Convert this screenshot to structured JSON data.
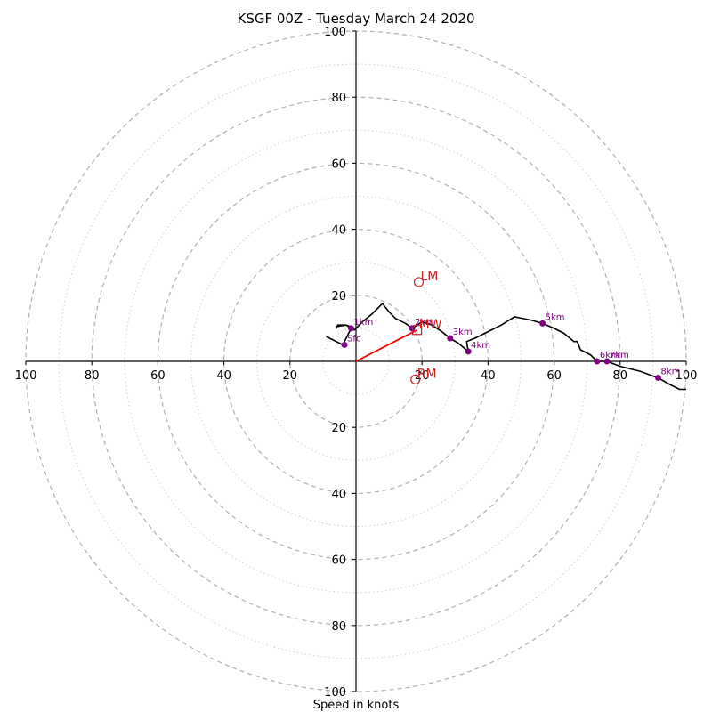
{
  "chart_data": {
    "type": "hodograph",
    "title": "KSGF 00Z - Tuesday March 24 2020",
    "xlabel": "Speed in knots",
    "units": "knots",
    "range": [
      -100,
      100
    ],
    "rings_major": [
      20,
      40,
      60,
      80,
      100
    ],
    "rings_minor": [
      10,
      30,
      50,
      70,
      90
    ],
    "axis_ticks": [
      {
        "v": -100,
        "label": "100"
      },
      {
        "v": -80,
        "label": "80"
      },
      {
        "v": -60,
        "label": "60"
      },
      {
        "v": -40,
        "label": "40"
      },
      {
        "v": -20,
        "label": "20"
      },
      {
        "v": 20,
        "label": "20"
      },
      {
        "v": 40,
        "label": "40"
      },
      {
        "v": 60,
        "label": "60"
      },
      {
        "v": 80,
        "label": "80"
      },
      {
        "v": 100,
        "label": "100"
      }
    ],
    "trace": [
      [
        -9,
        7.5
      ],
      [
        -8,
        7
      ],
      [
        -6,
        6
      ],
      [
        -4,
        5
      ],
      [
        -3,
        7
      ],
      [
        -2,
        9
      ],
      [
        -1,
        10
      ],
      [
        -1.5,
        10.5
      ],
      [
        -3,
        11
      ],
      [
        -5.5,
        11
      ],
      [
        -6,
        10
      ],
      [
        -6,
        10.5
      ],
      [
        -3,
        11
      ],
      [
        -1.5,
        10
      ],
      [
        -0.5,
        9.5
      ],
      [
        2,
        12
      ],
      [
        5,
        14.5
      ],
      [
        8,
        17.5
      ],
      [
        10,
        15
      ],
      [
        12,
        13
      ],
      [
        15,
        11.5
      ],
      [
        17,
        10
      ],
      [
        18.5,
        11
      ],
      [
        20,
        12
      ],
      [
        23,
        11
      ],
      [
        26,
        9
      ],
      [
        28.5,
        7
      ],
      [
        31,
        5.5
      ],
      [
        34,
        3
      ],
      [
        33.5,
        6
      ],
      [
        36,
        7
      ],
      [
        40,
        9
      ],
      [
        44,
        11
      ],
      [
        48,
        13.5
      ],
      [
        53,
        12.5
      ],
      [
        56.5,
        11.5
      ],
      [
        60,
        10
      ],
      [
        63,
        8.5
      ],
      [
        66,
        6
      ],
      [
        67,
        6
      ],
      [
        68,
        3.5
      ],
      [
        71,
        2
      ],
      [
        73,
        0
      ],
      [
        76,
        0
      ],
      [
        80,
        -1.5
      ],
      [
        86,
        -3
      ],
      [
        91.5,
        -5
      ],
      [
        95,
        -7
      ],
      [
        98,
        -8.5
      ],
      [
        100,
        -8.5
      ]
    ],
    "height_markers": [
      {
        "label": "Sfc",
        "x": -3.5,
        "y": 5
      },
      {
        "label": "1km",
        "x": -1.5,
        "y": 10
      },
      {
        "label": "2km",
        "x": 17,
        "y": 10
      },
      {
        "label": "3km",
        "x": 28.5,
        "y": 7
      },
      {
        "label": "4km",
        "x": 34,
        "y": 3
      },
      {
        "label": "5km",
        "x": 56.5,
        "y": 11.5
      },
      {
        "label": "6km",
        "x": 73,
        "y": 0
      },
      {
        "label": "7km",
        "x": 76,
        "y": 0
      },
      {
        "label": "8km",
        "x": 91.5,
        "y": -5
      }
    ],
    "storm_motion": [
      {
        "label": "LM",
        "x": 19,
        "y": 24,
        "marker": "circle"
      },
      {
        "label": "MW",
        "x": 18.5,
        "y": 9.5,
        "marker": "square"
      },
      {
        "label": "RM",
        "x": 18,
        "y": -5.5,
        "marker": "circle"
      }
    ],
    "shear_vector": {
      "from": [
        0,
        0
      ],
      "to": [
        18.5,
        9.5
      ]
    },
    "colors": {
      "trace": "#000000",
      "height_markers": "#800080",
      "storm_motion": "#cc2222",
      "shear_vector": "#ff0000",
      "rings": "#b0b0b0",
      "axes": "#000000"
    },
    "grid": true
  }
}
